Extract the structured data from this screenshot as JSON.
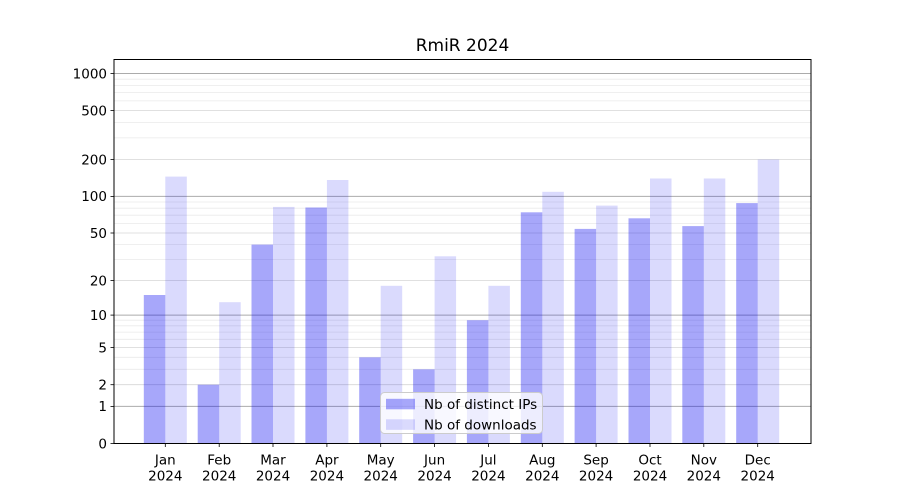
{
  "title": "RmiR 2024",
  "chart_data": {
    "type": "bar",
    "title": "RmiR 2024",
    "y_scale": "log1p",
    "ylim": [
      0,
      1310
    ],
    "yticks": [
      0,
      1,
      2,
      5,
      10,
      20,
      50,
      100,
      200,
      500,
      1000
    ],
    "grid": true,
    "categories": [
      "Jan",
      "Feb",
      "Mar",
      "Apr",
      "May",
      "Jun",
      "Jul",
      "Aug",
      "Sep",
      "Oct",
      "Nov",
      "Dec"
    ],
    "category_year": "2024",
    "legend_position": "lower-center",
    "series": [
      {
        "name": "Nb of distinct IPs",
        "color": "#0404f1",
        "opacity": 0.35,
        "values": [
          15,
          2,
          40,
          81,
          4,
          3,
          9,
          74,
          54,
          66,
          57,
          88
        ]
      },
      {
        "name": "Nb of downloads",
        "color": "#0404f1",
        "opacity": 0.15,
        "values": [
          145,
          13,
          82,
          136,
          18,
          32,
          18,
          109,
          84,
          140,
          140,
          200
        ]
      }
    ]
  },
  "legend": {
    "item1": "Nb of distinct IPs",
    "item2": "Nb of downloads"
  }
}
